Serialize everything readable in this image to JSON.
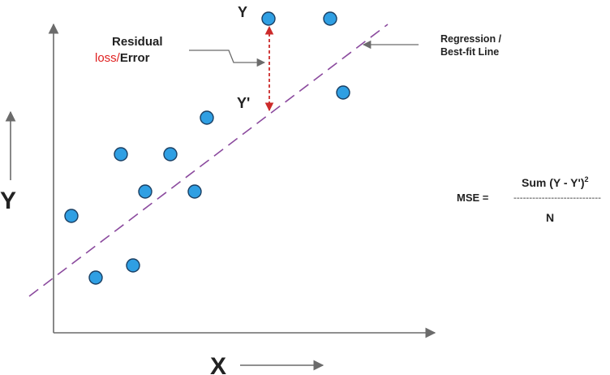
{
  "diagram": {
    "x_label": "X",
    "y_label": "Y",
    "residual_label_line1": "Residual",
    "residual_label_loss": "loss/",
    "residual_label_error": "Error",
    "regression_label_line1": "Regression /",
    "regression_label_line2": "Best-fit Line",
    "actual_point_label": "Y",
    "predicted_point_label": "Y'",
    "mse_label": "MSE =",
    "mse_numerator": "Sum (Y - Y')",
    "mse_exponent": "2",
    "mse_fraction_bar": "----------------------------",
    "mse_denominator": "N"
  },
  "colors": {
    "points_fill": "#2f9fe3",
    "points_stroke": "#1a3f63",
    "regression_line": "#8b4a9e",
    "residual_arrow": "#cc2a2a",
    "loss_text": "#e02020",
    "axis": "#6b6b6b"
  }
}
